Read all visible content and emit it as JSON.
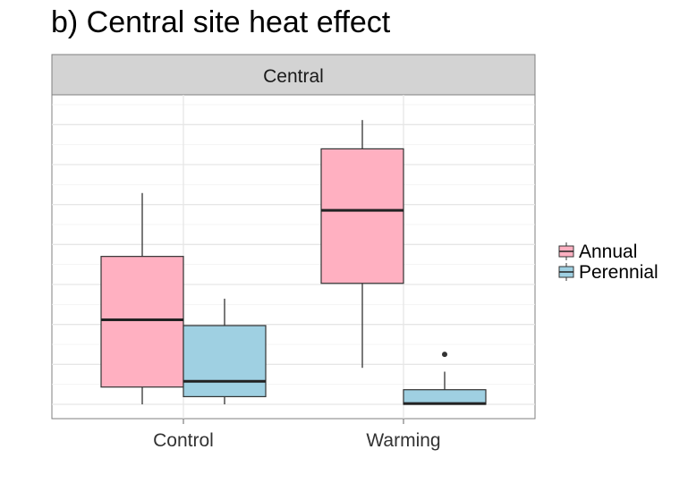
{
  "chart_data": {
    "type": "boxplot",
    "title": "b) Central site heat effect",
    "facet": "Central",
    "categories": [
      "Control",
      "Warming"
    ],
    "ylim": [
      0,
      7.8
    ],
    "grid": true,
    "legend": "right",
    "series": [
      {
        "name": "Annual",
        "color": "#ffb0c1",
        "boxes": [
          {
            "min": 0.0,
            "q1": 0.45,
            "median": 2.2,
            "q3": 3.85,
            "max": 5.5,
            "outliers": []
          },
          {
            "min": 0.95,
            "q1": 3.15,
            "median": 5.05,
            "q3": 6.65,
            "max": 7.4,
            "outliers": []
          }
        ]
      },
      {
        "name": "Perennial",
        "color": "#9fd0e2",
        "boxes": [
          {
            "min": 0.0,
            "q1": 0.2,
            "median": 0.6,
            "q3": 2.05,
            "max": 2.75,
            "outliers": []
          },
          {
            "min": 0.0,
            "q1": 0.0,
            "median": 0.02,
            "q3": 0.38,
            "max": 0.85,
            "outliers": [
              1.3
            ]
          }
        ]
      }
    ]
  }
}
